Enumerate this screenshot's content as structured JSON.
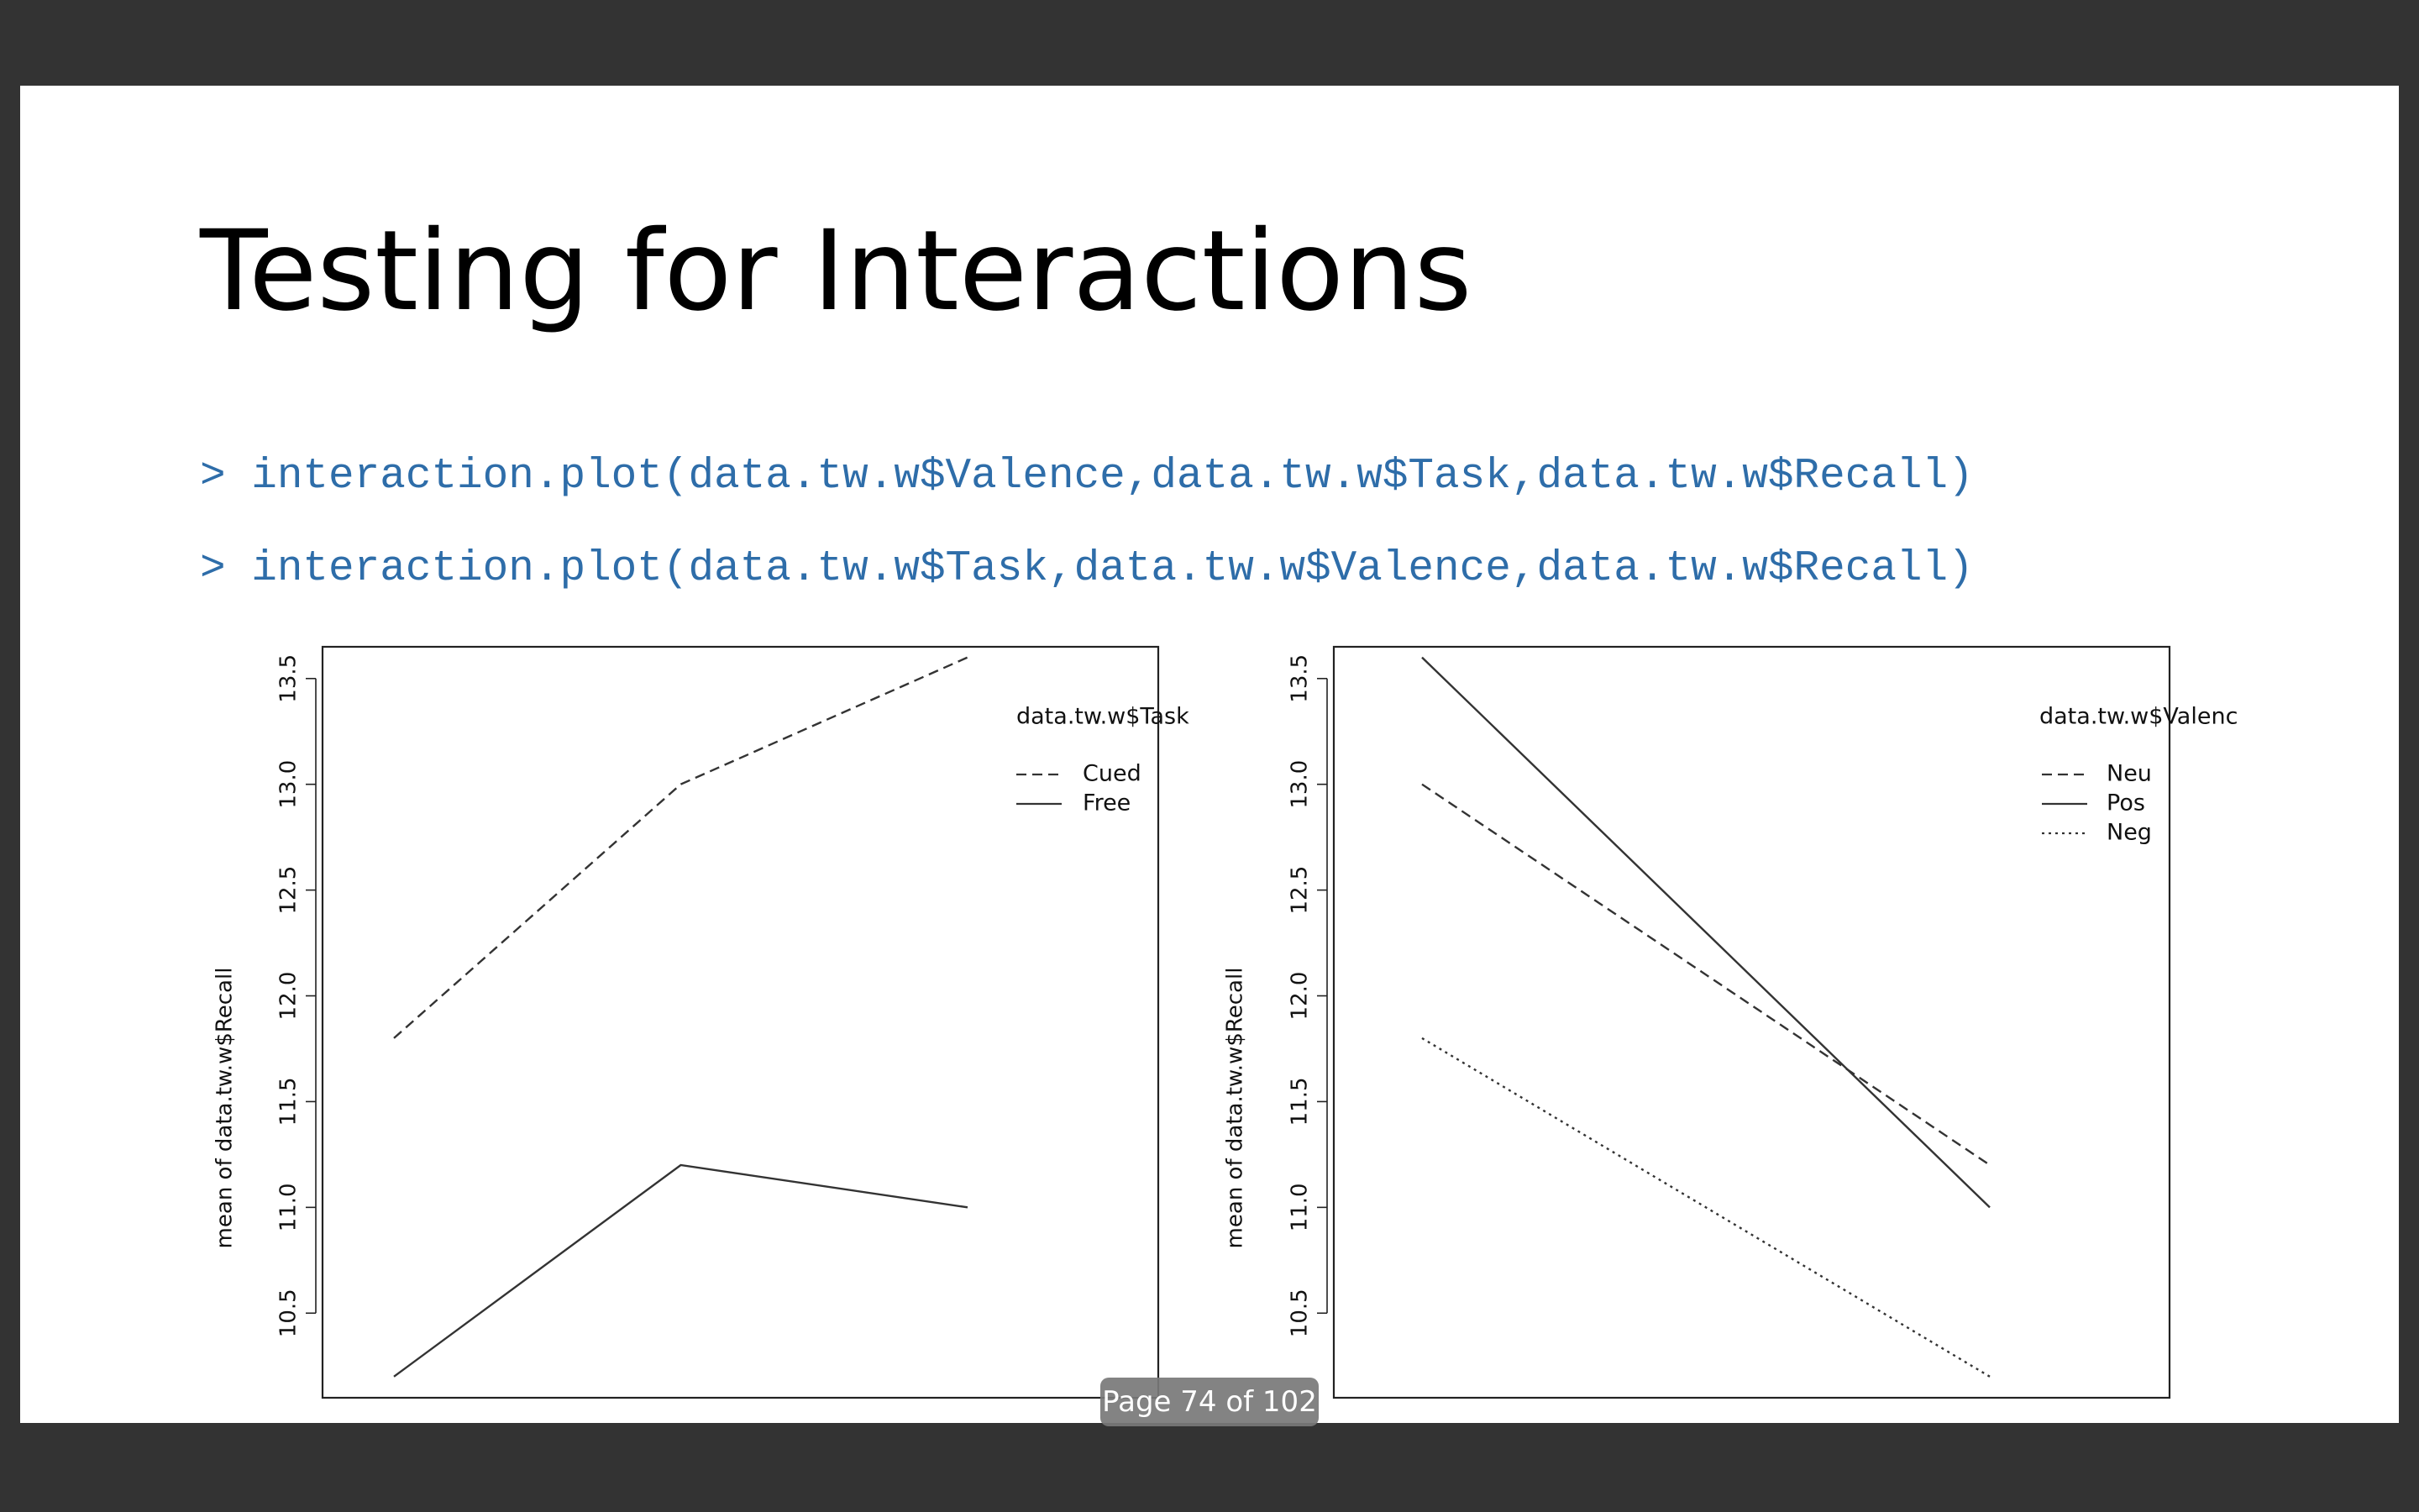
{
  "slide": {
    "title": "Testing for Interactions",
    "code_lines": [
      "> interaction.plot(data.tw.w$Valence,data.tw.w$Task,data.tw.w$Recall)",
      "> interaction.plot(data.tw.w$Task,data.tw.w$Valence,data.tw.w$Recall)"
    ]
  },
  "viewer": {
    "page_indicator": "Page 74 of 102"
  },
  "chart_data": [
    {
      "type": "line",
      "ylabel": "mean of  data.tw.w$Recall",
      "ylim": [
        10.1,
        13.65
      ],
      "yticks": [
        "10.5",
        "11.0",
        "11.5",
        "12.0",
        "12.5",
        "13.0",
        "13.5"
      ],
      "legend_title": "data.tw.w$Task",
      "legend_placement": "top-right",
      "x": [
        1,
        2,
        3
      ],
      "series": [
        {
          "name": "Cued",
          "values": [
            11.8,
            13.0,
            13.6
          ],
          "dash": "dashed"
        },
        {
          "name": "Free",
          "values": [
            10.2,
            11.2,
            11.0
          ],
          "dash": "solid"
        }
      ]
    },
    {
      "type": "line",
      "ylabel": "mean of  data.tw.w$Recall",
      "ylim": [
        10.1,
        13.65
      ],
      "yticks": [
        "10.5",
        "11.0",
        "11.5",
        "12.0",
        "12.5",
        "13.0",
        "13.5"
      ],
      "legend_title": "data.tw.w$Valenc",
      "legend_placement": "top-right",
      "x": [
        1,
        2
      ],
      "series": [
        {
          "name": "Neu",
          "values": [
            13.0,
            11.2
          ],
          "dash": "dashed"
        },
        {
          "name": "Pos",
          "values": [
            13.6,
            11.0
          ],
          "dash": "solid"
        },
        {
          "name": "Neg",
          "values": [
            11.8,
            10.2
          ],
          "dash": "dotted"
        }
      ]
    }
  ]
}
